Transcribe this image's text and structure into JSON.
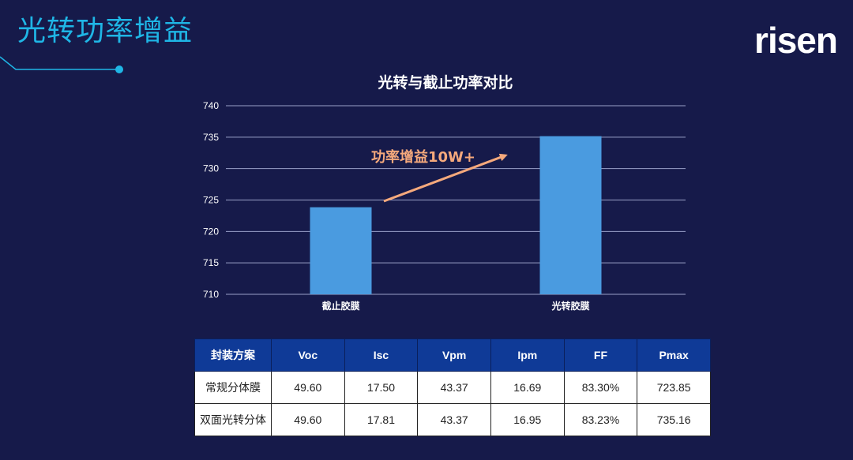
{
  "slide": {
    "title": "光转功率增益",
    "logo": "risen"
  },
  "colors": {
    "background": "#161a4a",
    "title": "#1fb6e6",
    "bar": "#4a9be0",
    "annotation": "#f5a97c",
    "table_header": "#0f3a97"
  },
  "chart_data": {
    "type": "bar",
    "title": "光转与截止功率对比",
    "categories": [
      "截止胶膜",
      "光转胶膜"
    ],
    "values": [
      723.85,
      735.16
    ],
    "ylim": [
      710,
      740
    ],
    "yticks": [
      710,
      715,
      720,
      725,
      730,
      735,
      740
    ],
    "grid": true,
    "legend": "none",
    "annotation": "功率增益10W+"
  },
  "table": {
    "headers": [
      "封装方案",
      "Voc",
      "Isc",
      "Vpm",
      "Ipm",
      "FF",
      "Pmax"
    ],
    "rows": [
      [
        "常规分体膜",
        "49.60",
        "17.50",
        "43.37",
        "16.69",
        "83.30%",
        "723.85"
      ],
      [
        "双面光转分体",
        "49.60",
        "17.81",
        "43.37",
        "16.95",
        "83.23%",
        "735.16"
      ]
    ]
  }
}
